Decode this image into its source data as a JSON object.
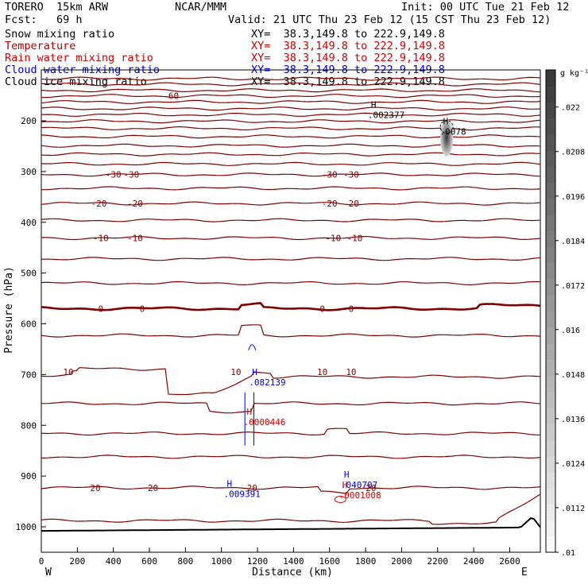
{
  "header": {
    "model": "TORERO  15km ARW",
    "org": "NCAR/MMM",
    "init": "Init: 00 UTC Tue 21 Feb 12",
    "fcst": "Fcst:   69 h",
    "valid": "Valid: 21 UTC Thu 23 Feb 12 (15 CST Thu 23 Feb 12)"
  },
  "legend": [
    {
      "label": "Snow mixing ratio",
      "xy": "XY=  38.3,149.8 to 222.9,149.8",
      "color": "#000000"
    },
    {
      "label": "Temperature",
      "xy": "XY=  38.3,149.8 to 222.9,149.8",
      "color": "#b00000"
    },
    {
      "label": "Rain water mixing ratio",
      "xy": "XY=  38.3,149.8 to 222.9,149.8",
      "color": "#cc0000"
    },
    {
      "label": "Cloud water mixing ratio",
      "xy": "XY=  38.3,149.8 to 222.9,149.8",
      "color": "#0000cc"
    },
    {
      "label": "Cloud ice mixing ratio",
      "xy": "XY=  38.3,149.8 to 222.9,149.8",
      "color": "#000000"
    }
  ],
  "chart_data": {
    "type": "cross-section contour",
    "xlabel": "Distance (km)",
    "ylabel": "Pressure (hPa)",
    "xlim": [
      0,
      2770
    ],
    "ylim": [
      100,
      1050
    ],
    "x_ticks": [
      0,
      200,
      400,
      600,
      800,
      1000,
      1200,
      1400,
      1600,
      1800,
      2000,
      2200,
      2400,
      2600
    ],
    "y_ticks": [
      200,
      300,
      400,
      500,
      600,
      700,
      800,
      900,
      1000
    ],
    "x_end_labels": {
      "left": "W",
      "right": "E"
    },
    "temperature_isotherms": [
      {
        "p": 117,
        "label": null
      },
      {
        "p": 128,
        "label": null
      },
      {
        "p": 140,
        "label": null
      },
      {
        "p": 151,
        "label": "-60"
      },
      {
        "p": 163,
        "label": null
      },
      {
        "p": 176,
        "label": null
      },
      {
        "p": 188,
        "label": null
      },
      {
        "p": 201,
        "label": null
      },
      {
        "p": 215,
        "label": null
      },
      {
        "p": 231,
        "label": null
      },
      {
        "p": 249,
        "label": null
      },
      {
        "p": 266,
        "label": null
      },
      {
        "p": 285,
        "label": null
      },
      {
        "p": 306,
        "label": "-30"
      },
      {
        "p": 333,
        "label": null
      },
      {
        "p": 363,
        "label": "-20"
      },
      {
        "p": 396,
        "label": null
      },
      {
        "p": 431,
        "label": "-10"
      },
      {
        "p": 472,
        "label": null
      },
      {
        "p": 520,
        "label": null
      },
      {
        "p": 570,
        "label": "0"
      },
      {
        "p": 623,
        "label": null
      },
      {
        "p": 695,
        "label": "10"
      },
      {
        "p": 757,
        "label": null
      },
      {
        "p": 816,
        "label": null
      },
      {
        "p": 862,
        "label": null
      },
      {
        "p": 923,
        "label": "20"
      },
      {
        "p": 988,
        "label": null
      }
    ],
    "label_text": {
      "m60": "-60",
      "m30": "-30",
      "m20": "-20",
      "m10": "-10",
      "zero": "0",
      "ten": "10",
      "twenty": "20"
    },
    "maxima": [
      {
        "mark": "H",
        "value": ".002377",
        "field": "Cloud ice mixing ratio",
        "x": 1830,
        "p": 193,
        "color": "#000000"
      },
      {
        "mark": "H",
        "value": ".0078",
        "field": "Snow mixing ratio",
        "x": 2230,
        "p": 226,
        "color": "#000000"
      },
      {
        "mark": "H",
        "value": ".082139",
        "field": "Cloud water mixing ratio",
        "x": 1170,
        "p": 720,
        "color": "#0000cc"
      },
      {
        "mark": "H",
        "value": ".0000446",
        "field": "Rain water mixing ratio",
        "x": 1140,
        "p": 798,
        "color": "#cc0000"
      },
      {
        "mark": "H",
        "value": ".009391",
        "field": "Cloud water mixing ratio",
        "x": 1030,
        "p": 940,
        "color": "#0000cc"
      },
      {
        "mark": "H",
        "value": ".040707",
        "field": "Cloud water mixing ratio",
        "x": 1680,
        "p": 922,
        "color": "#0000cc"
      },
      {
        "mark": "H",
        "value": ".0001008",
        "field": "Rain water mixing ratio",
        "x": 1670,
        "p": 942,
        "color": "#cc0000"
      }
    ],
    "colorbar": {
      "unit": "g kg⁻¹",
      "ticks": [
        ".01",
        ".0112",
        ".0124",
        ".0136",
        ".0148",
        ".016",
        ".0172",
        ".0184",
        ".0196",
        ".0208",
        ".022"
      ],
      "min": 0.01,
      "max": 0.023
    }
  }
}
